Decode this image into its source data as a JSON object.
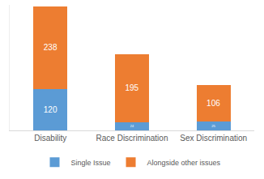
{
  "chart_data": {
    "type": "bar",
    "stacked": true,
    "data_labels": true,
    "tick_labels": "x",
    "grid": false,
    "legend": "bottom",
    "categories": [
      "Disability",
      "Race Discrimination",
      "Sex Discrimination"
    ],
    "series": [
      {
        "name": "Single Issue",
        "color": "#5b9bd5",
        "values": [
          120,
          24,
          25
        ]
      },
      {
        "name": "Alongside other issues",
        "color": "#ed7d31",
        "values": [
          238,
          195,
          106
        ]
      }
    ],
    "ylim": [
      0,
      362
    ]
  }
}
